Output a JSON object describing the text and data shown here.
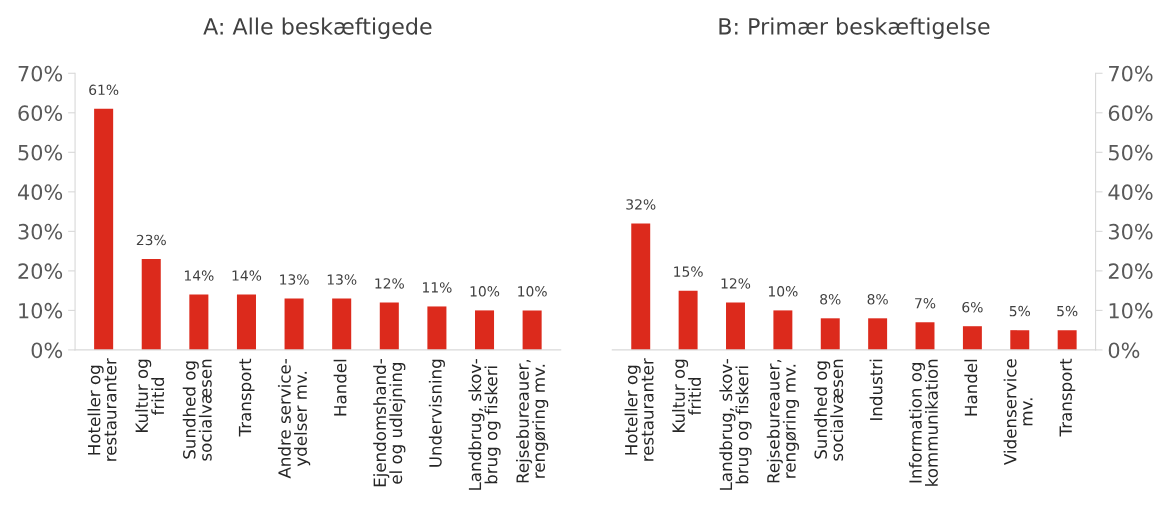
{
  "chart_data": [
    {
      "type": "bar",
      "title": "A: Alle beskæftigede",
      "categories": [
        "Hoteller og\nrestauranter",
        "Kultur og\nfritid",
        "Sundhed og\nsocialvæsen",
        "Transport",
        "Andre service-\nydelser mv.",
        "Handel",
        "Ejendomshand-\nel og udlejning",
        "Undervisning",
        "Landbrug, skov-\nbrug og fiskeri",
        "Rejsebureauer,\nrengøring mv."
      ],
      "values": [
        61,
        23,
        14,
        14,
        13,
        13,
        12,
        11,
        10,
        10
      ],
      "value_labels": [
        "61%",
        "23%",
        "14%",
        "14%",
        "13%",
        "13%",
        "12%",
        "11%",
        "10%",
        "10%"
      ],
      "color": "#dc2a1c",
      "ylim": [
        0,
        70
      ],
      "yticks": [
        {
          "value": 0,
          "label": "0%"
        },
        {
          "value": 10,
          "label": "10%"
        },
        {
          "value": 20,
          "label": "20%"
        },
        {
          "value": 30,
          "label": "30%"
        },
        {
          "value": 40,
          "label": "40%"
        },
        {
          "value": 50,
          "label": "50%"
        },
        {
          "value": 60,
          "label": "60%"
        },
        {
          "value": 70,
          "label": "70%"
        }
      ],
      "grid": false
    },
    {
      "type": "bar",
      "title": "B: Primær beskæftigelse",
      "categories": [
        "Hoteller og\nrestauranter",
        "Kultur og\nfritid",
        "Landbrug, skov-\nbrug og fiskeri",
        "Rejsebureauer,\nrengøring mv.",
        "Sundhed og\nsocialvæsen",
        "Industri",
        "Information og\nkommunikation",
        "Handel",
        "Videnservice\nmv.",
        "Transport"
      ],
      "values": [
        32,
        15,
        12,
        10,
        8,
        8,
        7,
        6,
        5,
        5
      ],
      "value_labels": [
        "32%",
        "15%",
        "12%",
        "10%",
        "8%",
        "8%",
        "7%",
        "6%",
        "5%",
        "5%"
      ],
      "color": "#dc2a1c",
      "y2lim": [
        0,
        70
      ],
      "y2ticks": [
        {
          "value": 0,
          "label": "0%"
        },
        {
          "value": 10,
          "label": "10%"
        },
        {
          "value": 20,
          "label": "20%"
        },
        {
          "value": 30,
          "label": "30%"
        },
        {
          "value": 40,
          "label": "40%"
        },
        {
          "value": 50,
          "label": "50%"
        },
        {
          "value": 60,
          "label": "60%"
        },
        {
          "value": 70,
          "label": "70%"
        }
      ],
      "grid": false
    }
  ]
}
